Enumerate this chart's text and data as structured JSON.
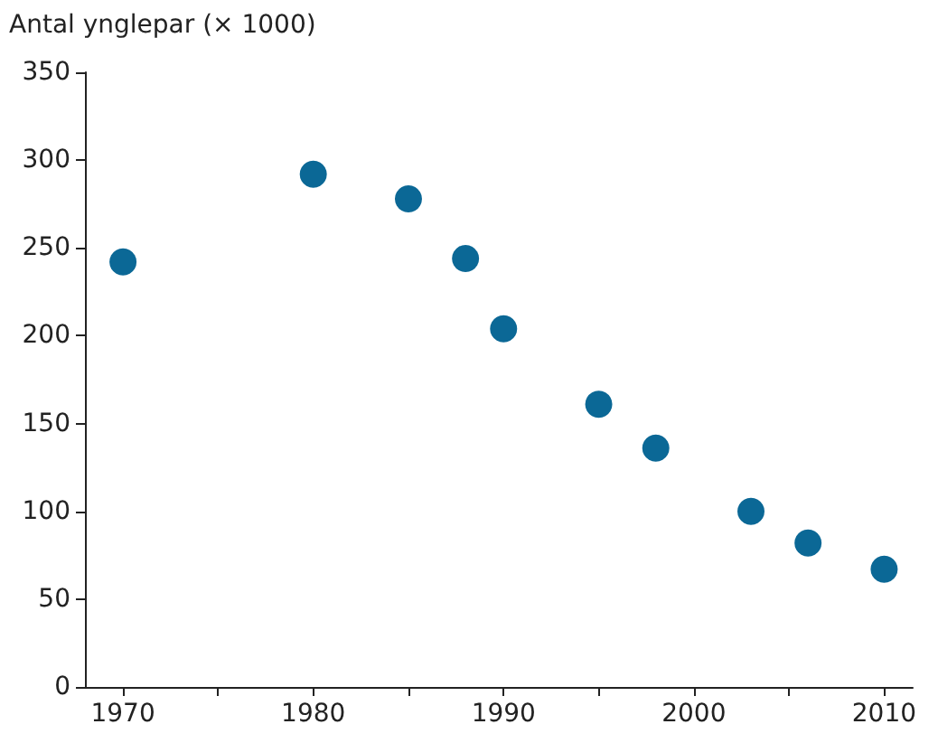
{
  "chart_data": {
    "type": "scatter",
    "ylabel": "Antal ynglepar (× 1000)",
    "x": [
      1970,
      1980,
      1985,
      1988,
      1990,
      1995,
      1998,
      2003,
      2006,
      2010
    ],
    "series": [
      {
        "color": "#0b6896",
        "values": [
          242,
          292,
          278,
          244,
          204,
          161,
          136,
          100,
          82,
          67
        ]
      }
    ],
    "xlim": [
      1968,
      2011.5
    ],
    "xticks": [
      1970,
      {
        "value": 1975,
        "label": null
      },
      1980,
      {
        "value": 1985,
        "label": null
      },
      1990,
      {
        "value": 1995,
        "label": null
      },
      2000,
      {
        "value": 2005,
        "label": null
      },
      2010
    ],
    "ylim": [
      0,
      350
    ],
    "yticks": [
      0,
      50,
      100,
      150,
      200,
      250,
      300,
      350
    ],
    "grid": false,
    "marker": "circle"
  }
}
